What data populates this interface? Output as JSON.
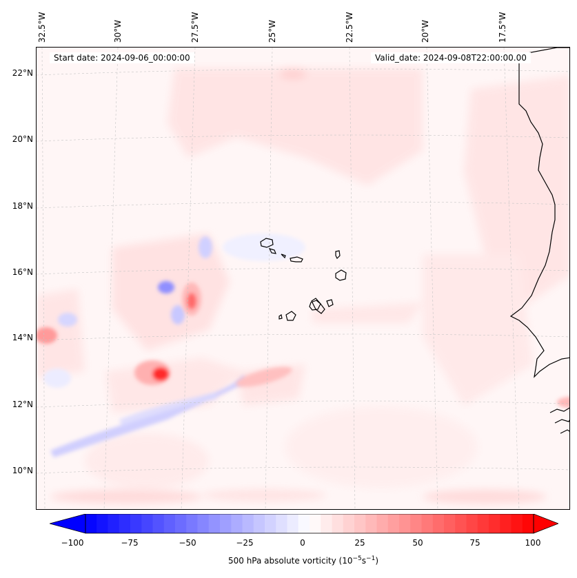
{
  "map": {
    "start_date": "Start date: 2024-09-06_00:00:00",
    "valid_date": "Valid_date: 2024-09-08T22:00:00.00",
    "lon_labels": [
      "32.5°W",
      "30°W",
      "27.5°W",
      "25°W",
      "22.5°W",
      "20°W",
      "17.5°W"
    ],
    "lat_labels": [
      "22°N",
      "20°N",
      "18°N",
      "16°N",
      "14°N",
      "12°N",
      "10°N"
    ],
    "coastline_color": "#000000",
    "gridline_color": "#bbbbbb"
  },
  "colorbar": {
    "label_main": "500 hPa absolute vorticity (10",
    "label_exp1": "−5",
    "label_mid": "s",
    "label_exp2": "−1",
    "label_end": ")",
    "ticks": [
      "−100",
      "−75",
      "−50",
      "−25",
      "0",
      "25",
      "50",
      "75",
      "100"
    ],
    "min_color": "#0000ff",
    "mid_color": "#ffffff",
    "max_color": "#ff0000"
  }
}
